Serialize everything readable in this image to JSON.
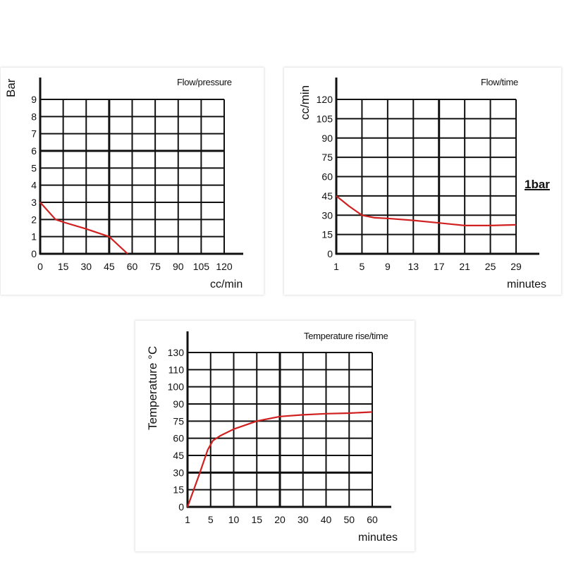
{
  "chart_data": [
    {
      "type": "line",
      "title": "Flow/pressure",
      "xlabel": "cc/min",
      "ylabel": "Bar",
      "x_ticks": [
        0,
        15,
        30,
        45,
        60,
        75,
        90,
        105,
        120
      ],
      "y_ticks": [
        0,
        1,
        2,
        3,
        4,
        5,
        6,
        7,
        8,
        9
      ],
      "xlim": [
        0,
        120
      ],
      "ylim": [
        0,
        9
      ],
      "grid": true,
      "series": [
        {
          "name": "Flow/pressure",
          "color": "#d02020",
          "points": [
            [
              0,
              3
            ],
            [
              10,
              2
            ],
            [
              15,
              1.85
            ],
            [
              30,
              1.45
            ],
            [
              45,
              1
            ],
            [
              57,
              0
            ]
          ]
        }
      ]
    },
    {
      "type": "line",
      "title": "Flow/time",
      "xlabel": "minutes",
      "ylabel": "cc/min",
      "annotation": "1bar",
      "x_ticks": [
        1,
        5,
        9,
        13,
        17,
        21,
        25,
        29
      ],
      "y_ticks": [
        0,
        15,
        30,
        45,
        60,
        75,
        90,
        105,
        120
      ],
      "xlim": [
        1,
        29
      ],
      "ylim": [
        0,
        120
      ],
      "grid": true,
      "series": [
        {
          "name": "Flow/time",
          "color": "#d02020",
          "points": [
            [
              1,
              45
            ],
            [
              3,
              37
            ],
            [
              5,
              30
            ],
            [
              7,
              28
            ],
            [
              9,
              27.5
            ],
            [
              13,
              26
            ],
            [
              17,
              24
            ],
            [
              21,
              22
            ],
            [
              25,
              22
            ],
            [
              29,
              22.5
            ]
          ]
        }
      ]
    },
    {
      "type": "line",
      "title": "Temperature rise/time",
      "xlabel": "minutes",
      "ylabel": "Temperature °C",
      "x_ticks": [
        1,
        5,
        10,
        15,
        20,
        30,
        40,
        50,
        60
      ],
      "y_ticks": [
        0,
        15,
        30,
        45,
        60,
        75,
        90,
        100,
        110,
        130
      ],
      "xlim": [
        1,
        60
      ],
      "ylim": [
        0,
        130
      ],
      "grid": true,
      "series": [
        {
          "name": "Temperature rise/time",
          "color": "#d02020",
          "points": [
            [
              1,
              0
            ],
            [
              3,
              28
            ],
            [
              4.5,
              50
            ],
            [
              5.5,
              58
            ],
            [
              7,
              62
            ],
            [
              10,
              68
            ],
            [
              15,
              75
            ],
            [
              20,
              79
            ],
            [
              30,
              80.5
            ],
            [
              40,
              81.5
            ],
            [
              50,
              82
            ],
            [
              60,
              83
            ]
          ]
        }
      ]
    }
  ]
}
